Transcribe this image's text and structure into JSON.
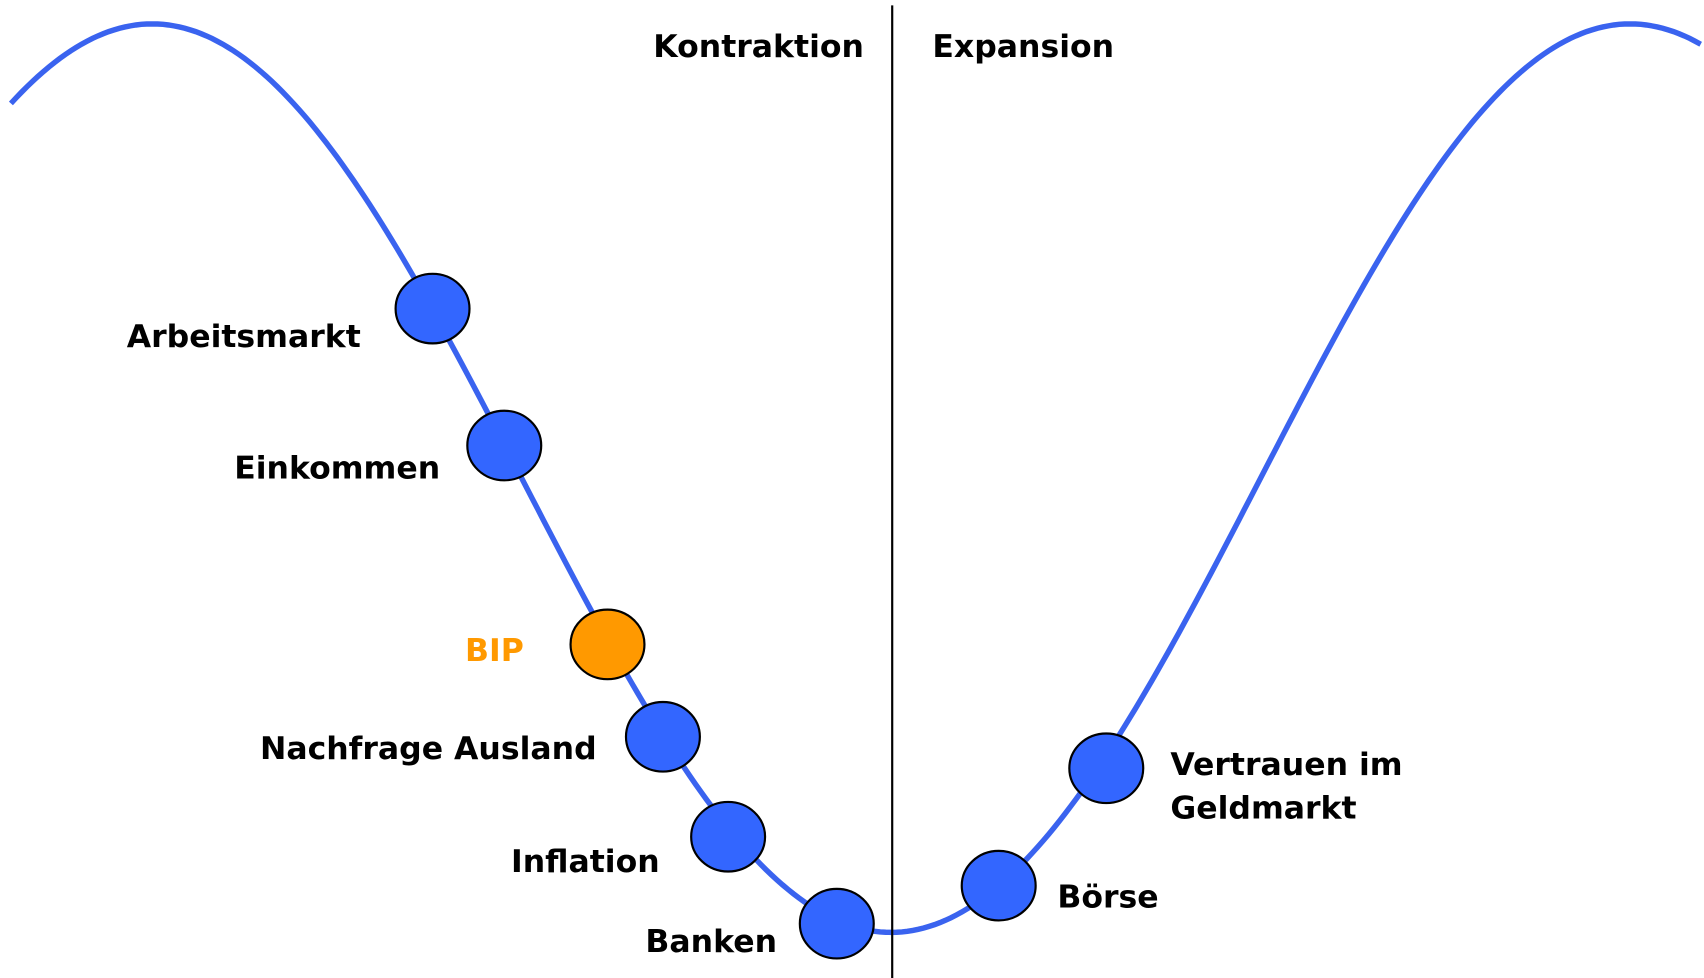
{
  "phases": [
    "Kontraktion",
    "Expansion"
  ],
  "nodes": [
    {
      "lines": [
        "Arbeitsmarkt"
      ]
    },
    {
      "lines": [
        "Einkommen"
      ]
    },
    {
      "lines": [
        "BIP"
      ]
    },
    {
      "lines": [
        "Nachfrage Ausland"
      ]
    },
    {
      "lines": [
        "Inflation"
      ]
    },
    {
      "lines": [
        "Banken"
      ]
    },
    {
      "lines": [
        "Börse"
      ]
    },
    {
      "lines": [
        "Vertrauen im",
        "Geldmarkt"
      ]
    }
  ]
}
